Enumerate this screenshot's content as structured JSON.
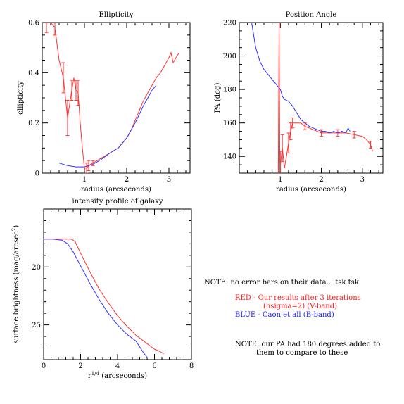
{
  "chart_data": [
    {
      "type": "line",
      "title": "Ellipticity",
      "xlabel": "radius (arcseconds)",
      "ylabel": "ellipticity",
      "xlim": [
        0,
        3.5
      ],
      "ylim": [
        0,
        0.6
      ],
      "xticks": [
        "1",
        "2",
        "3"
      ],
      "yticks": [
        "0",
        "0.2",
        "0.4",
        "0.6"
      ],
      "series": [
        {
          "color": "#ff3333",
          "x": [
            0.1,
            0.2,
            0.3,
            0.4,
            0.5,
            0.55,
            0.6,
            0.7,
            0.75,
            0.8,
            0.85,
            0.9,
            0.95,
            1.0,
            1.05,
            1.1,
            1.2,
            1.3,
            1.4,
            1.5,
            1.6,
            1.7,
            1.8,
            1.9,
            2.0,
            2.1,
            2.2,
            2.3,
            2.4,
            2.5,
            2.6,
            2.7,
            2.8,
            2.9,
            3.0,
            3.05,
            3.1,
            3.2,
            3.25
          ],
          "y": [
            0.6,
            0.6,
            0.58,
            0.45,
            0.38,
            0.3,
            0.22,
            0.33,
            0.38,
            0.33,
            0.32,
            0.2,
            0.1,
            0.02,
            0.02,
            0.03,
            0.04,
            0.05,
            0.06,
            0.07,
            0.08,
            0.09,
            0.1,
            0.12,
            0.14,
            0.17,
            0.21,
            0.25,
            0.29,
            0.32,
            0.35,
            0.38,
            0.4,
            0.43,
            0.46,
            0.48,
            0.44,
            0.47,
            0.48
          ]
        },
        {
          "color": "#3333ff",
          "x": [
            0.4,
            0.6,
            0.8,
            1.0,
            1.2,
            1.4,
            1.6,
            1.8,
            2.0,
            2.2,
            2.4,
            2.6,
            2.7
          ],
          "y": [
            0.04,
            0.03,
            0.025,
            0.025,
            0.035,
            0.055,
            0.08,
            0.1,
            0.14,
            0.2,
            0.27,
            0.33,
            0.35
          ]
        }
      ],
      "error_bars": {
        "color": "#ff3333",
        "x": [
          0.1,
          0.3,
          0.5,
          0.6,
          0.7,
          0.8,
          0.85,
          1.05,
          1.1,
          1.2
        ],
        "y": [
          0.6,
          0.58,
          0.38,
          0.22,
          0.33,
          0.33,
          0.32,
          0.02,
          0.03,
          0.04
        ],
        "err": [
          0.04,
          0.03,
          0.06,
          0.07,
          0.04,
          0.04,
          0.05,
          0.02,
          0.02,
          0.01
        ]
      }
    },
    {
      "type": "line",
      "title": "Position Angle",
      "xlabel": "radius (arcseconds)",
      "ylabel": "PA (deg)",
      "xlim": [
        0,
        3.5
      ],
      "ylim": [
        130,
        220
      ],
      "xticks": [
        "1",
        "2",
        "3"
      ],
      "yticks": [
        "140",
        "160",
        "180",
        "200",
        "220"
      ],
      "series": [
        {
          "color": "#ff3333",
          "x": [
            0.95,
            0.97,
            0.99,
            1.0,
            1.05,
            1.1,
            1.15,
            1.2,
            1.25,
            1.3,
            1.4,
            1.5,
            1.6,
            1.7,
            1.8,
            1.9,
            2.0,
            2.2,
            2.4,
            2.6,
            2.8,
            3.0,
            3.1,
            3.2,
            3.25
          ],
          "y": [
            130,
            220,
            130,
            135,
            145,
            133,
            140,
            148,
            155,
            160,
            160,
            160,
            158,
            157,
            156,
            155,
            154,
            154,
            154,
            154,
            153,
            152,
            150,
            147,
            143
          ]
        },
        {
          "color": "#3333ff",
          "x": [
            0.3,
            0.4,
            0.5,
            0.6,
            0.7,
            0.8,
            0.9,
            1.0,
            1.05,
            1.1,
            1.2,
            1.3,
            1.4,
            1.5,
            1.6,
            1.7,
            1.8,
            1.9,
            2.0,
            2.1,
            2.2,
            2.3,
            2.4,
            2.5,
            2.6,
            2.65,
            2.7
          ],
          "y": [
            220,
            205,
            197,
            192,
            189,
            186,
            183,
            180,
            176,
            174,
            173,
            170,
            166,
            162,
            160,
            158,
            157,
            156,
            155,
            155,
            154,
            155,
            154,
            155,
            154,
            157,
            155
          ]
        }
      ],
      "error_bars": {
        "color": "#ff3333",
        "x": [
          1.0,
          1.05,
          1.2,
          1.25,
          1.3,
          1.6,
          2.0,
          2.4,
          2.8,
          3.2
        ],
        "y": [
          135,
          145,
          148,
          155,
          160,
          158,
          154,
          154,
          153,
          147
        ],
        "err": [
          8,
          8,
          6,
          5,
          3,
          2,
          2,
          2,
          2,
          2
        ]
      }
    },
    {
      "type": "line",
      "title": "intensity profile of galaxy",
      "xlabel": "r<sup>1/4</sup> (arcseconds)",
      "ylabel": "surface brightness (mag/arcsec<sup>2</sup>)",
      "xlim": [
        0,
        8
      ],
      "ylim": [
        28,
        15
      ],
      "y_inverted": true,
      "xticks": [
        "0",
        "2",
        "4",
        "6",
        "8"
      ],
      "yticks": [
        "20",
        "25"
      ],
      "series": [
        {
          "color": "#ff3333",
          "x": [
            0,
            0.5,
            1.0,
            1.5,
            1.7,
            2.0,
            2.5,
            3.0,
            3.5,
            4.0,
            4.5,
            5.0,
            5.5,
            6.0,
            6.3,
            6.5
          ],
          "y": [
            17.6,
            17.6,
            17.6,
            17.6,
            17.8,
            18.8,
            20.4,
            21.9,
            23.1,
            24.2,
            25.1,
            25.9,
            26.5,
            27.1,
            27.3,
            27.5
          ]
        },
        {
          "color": "#3333ff",
          "x": [
            0,
            0.5,
            1.0,
            1.3,
            1.6,
            2.0,
            2.5,
            3.0,
            3.5,
            4.0,
            4.5,
            5.0,
            5.2,
            5.4,
            5.6
          ],
          "y": [
            17.6,
            17.6,
            17.7,
            18.0,
            18.7,
            19.9,
            21.4,
            22.8,
            24.0,
            25.0,
            25.8,
            26.4,
            26.9,
            27.4,
            27.8
          ]
        }
      ]
    }
  ],
  "notes": {
    "line1": "NOTE: no error bars on their data... tsk tsk",
    "red_line1": "RED - Our results after 3 iterations",
    "red_line2": "(hsigma=2) (V-band)",
    "blue_line": "BLUE - Caon et all (B-band)",
    "note2_line1": "NOTE: our PA had 180 degrees added to",
    "note2_line2": "them to compare to these"
  }
}
